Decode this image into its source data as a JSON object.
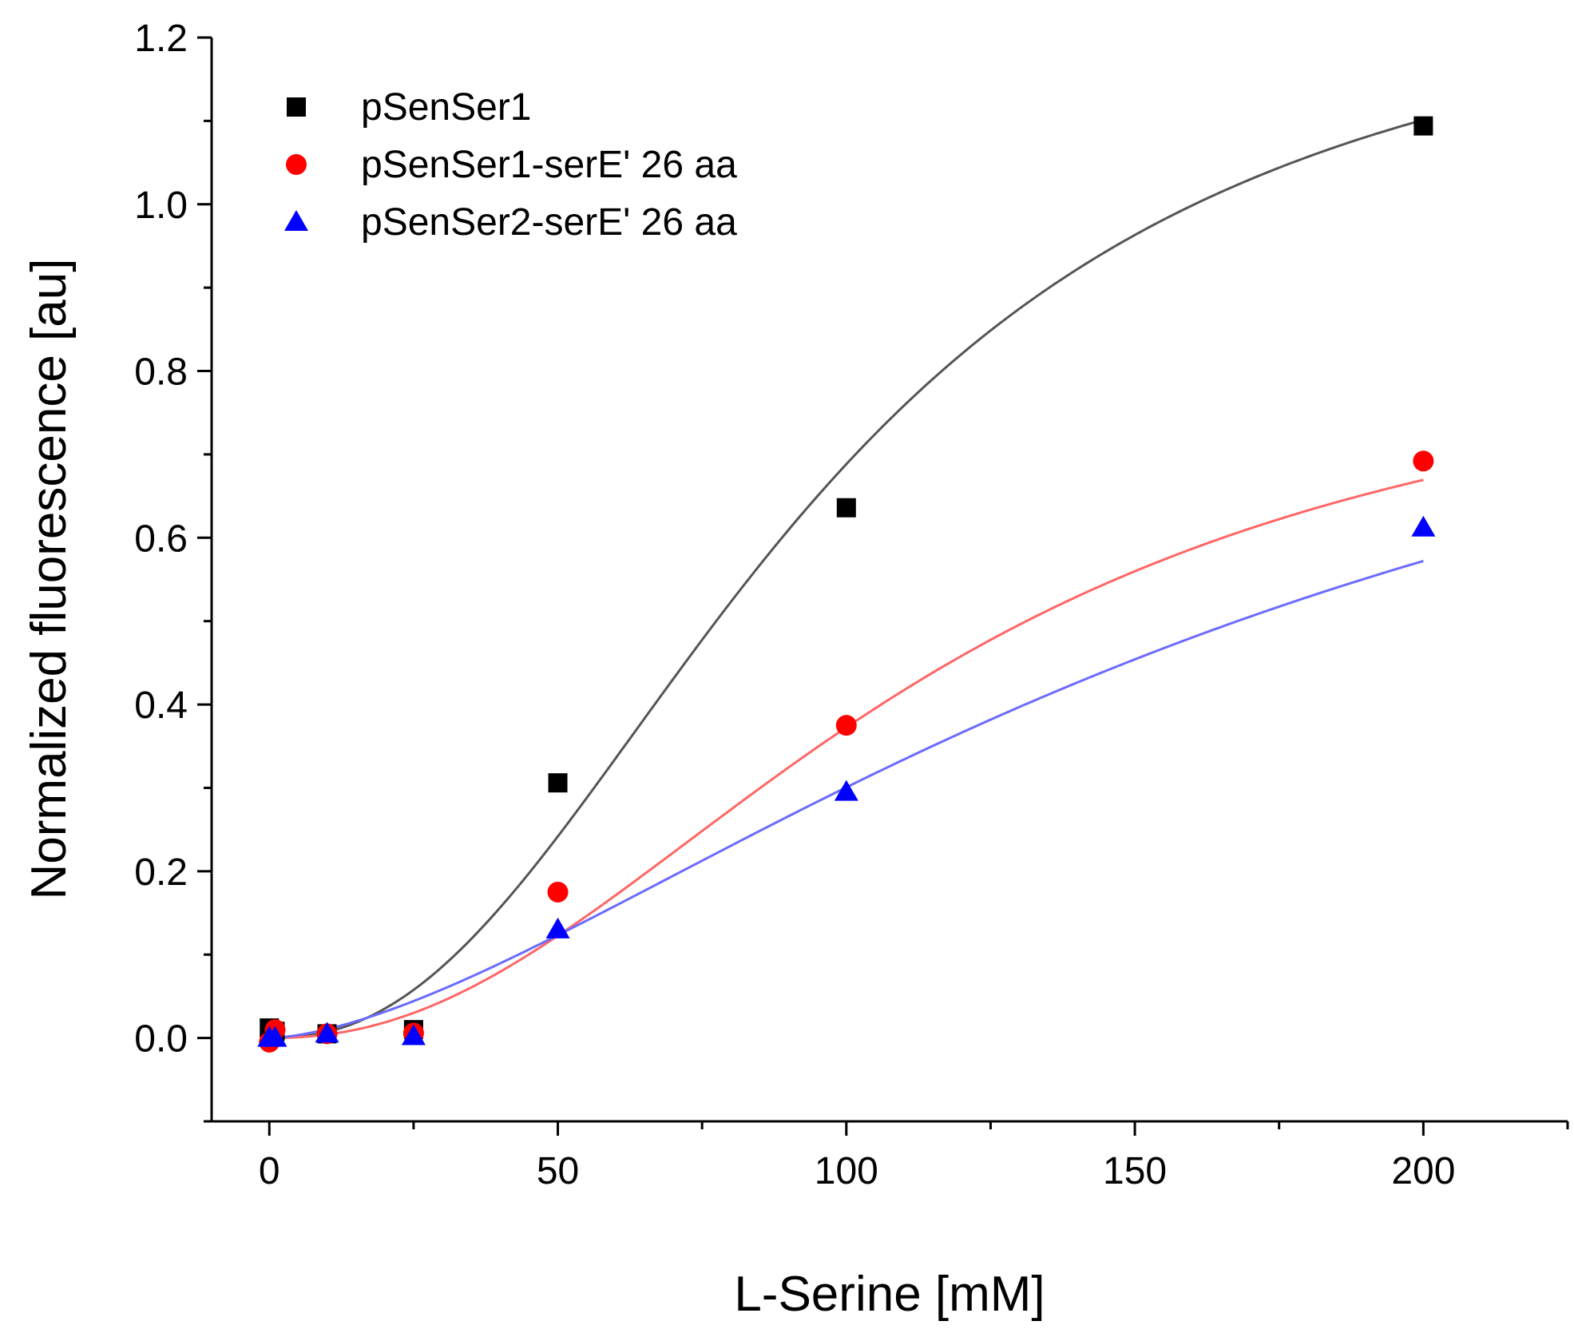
{
  "chart_data": {
    "type": "scatter",
    "title": "",
    "xlabel": "L-Serine [mM]",
    "ylabel": "Normalized fluorescence [au]",
    "xlim": [
      -10,
      225
    ],
    "ylim": [
      -0.1,
      1.2
    ],
    "xticks": [
      0,
      50,
      100,
      150,
      200
    ],
    "xtick_labels": [
      "0",
      "50",
      "100",
      "150",
      "200"
    ],
    "yticks": [
      0.0,
      0.2,
      0.4,
      0.6,
      0.8,
      1.0,
      1.2
    ],
    "ytick_labels": [
      "0.0",
      "0.2",
      "0.4",
      "0.6",
      "0.8",
      "1.0",
      "1.2"
    ],
    "x_minor_ticks": [
      25,
      75,
      125,
      175,
      225
    ],
    "y_minor_ticks": [
      -0.1,
      0.1,
      0.3,
      0.5,
      0.7,
      0.9,
      1.1
    ],
    "grid": false,
    "legend_position": "top-left",
    "series": [
      {
        "name": "pSenSer1",
        "marker": "square",
        "color": "#000000",
        "fit_color": "#555555",
        "points": [
          {
            "x": 0,
            "y": 0.012
          },
          {
            "x": 1,
            "y": 0.008
          },
          {
            "x": 10,
            "y": 0.005
          },
          {
            "x": 25,
            "y": 0.01
          },
          {
            "x": 50,
            "y": 0.306
          },
          {
            "x": 100,
            "y": 0.636
          },
          {
            "x": 200,
            "y": 1.094
          }
        ],
        "fit": {
          "model": "hill",
          "vmax": 1.3,
          "k": 95,
          "n": 2.3
        }
      },
      {
        "name": "pSenSer1-serE' 26 aa",
        "marker": "circle",
        "color": "#ff0000",
        "fit_color": "#ff6666",
        "points": [
          {
            "x": 0,
            "y": -0.005
          },
          {
            "x": 1,
            "y": 0.01
          },
          {
            "x": 10,
            "y": 0.005
          },
          {
            "x": 25,
            "y": 0.006
          },
          {
            "x": 50,
            "y": 0.175
          },
          {
            "x": 100,
            "y": 0.375
          },
          {
            "x": 200,
            "y": 0.692
          }
        ],
        "fit": {
          "model": "hill",
          "vmax": 0.86,
          "k": 113,
          "n": 2.2
        }
      },
      {
        "name": "pSenSer2-serE' 26 aa",
        "marker": "triangle",
        "color": "#0000ff",
        "fit_color": "#6b6bff",
        "points": [
          {
            "x": 0,
            "y": 0.0
          },
          {
            "x": 1,
            "y": 0.0
          },
          {
            "x": 10,
            "y": 0.005
          },
          {
            "x": 25,
            "y": 0.002
          },
          {
            "x": 50,
            "y": 0.13
          },
          {
            "x": 100,
            "y": 0.295
          },
          {
            "x": 200,
            "y": 0.612
          }
        ],
        "fit": {
          "model": "hill",
          "vmax": 1.03,
          "k": 174,
          "n": 1.6
        }
      }
    ]
  }
}
